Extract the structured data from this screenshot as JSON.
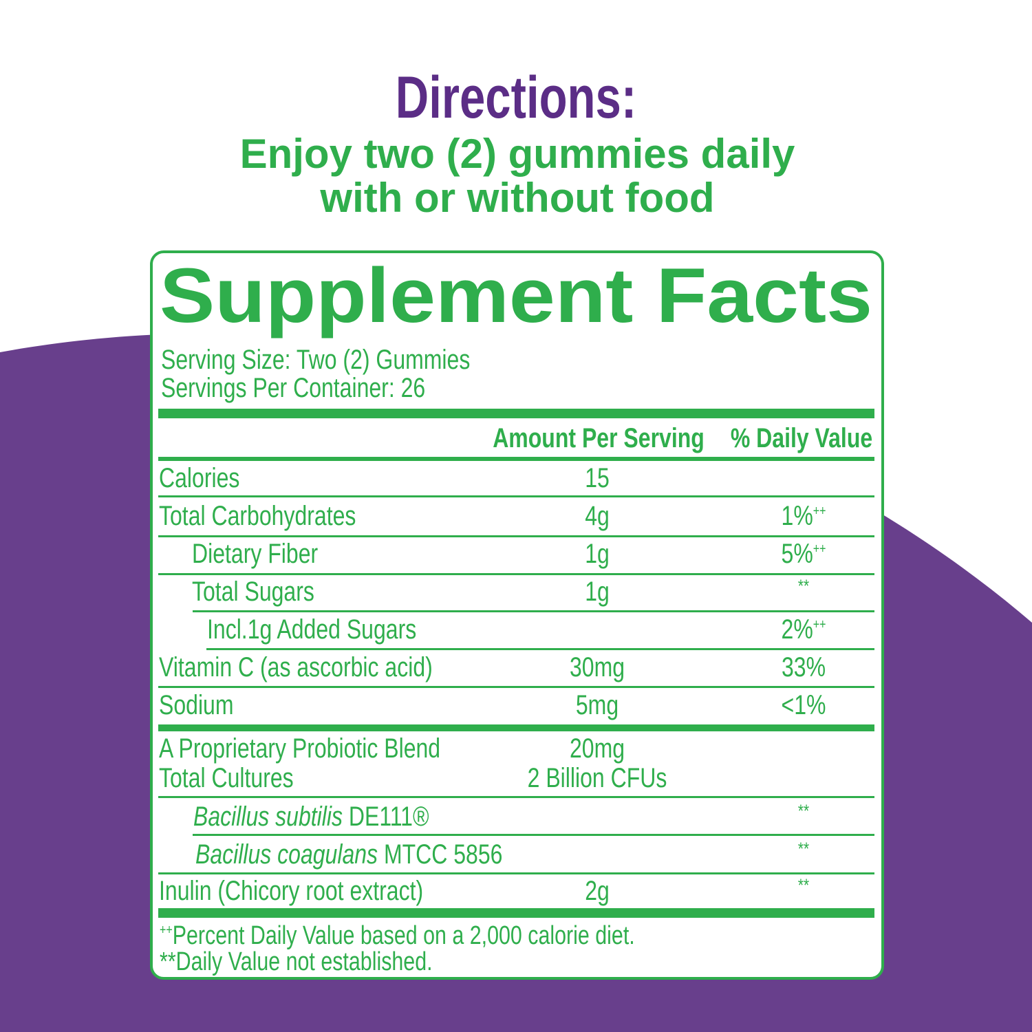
{
  "directions": {
    "title": "Directions:",
    "lines": [
      "Enjoy two (2) gummies daily",
      "with or without food"
    ]
  },
  "facts": {
    "title": "Supplement Facts",
    "serving_size": "Serving Size: Two (2) Gummies",
    "servings_per_container": "Servings Per Container: 26",
    "headers": {
      "amount": "Amount Per Serving",
      "dv": "% Daily Value"
    },
    "rows": [
      {
        "name": "Calories",
        "amount": "15"
      },
      {
        "name": "Total Carbohydrates",
        "amount": "4g",
        "dv": "1%",
        "dv_note": "++"
      },
      {
        "name": "Dietary Fiber",
        "amount": "1g",
        "dv": "5%",
        "dv_note": "++"
      },
      {
        "name": "Total Sugars",
        "amount": "1g",
        "dv_note": "**"
      },
      {
        "name": "Incl.1g Added Sugars",
        "dv": "2%",
        "dv_note": "++"
      },
      {
        "name": "Vitamin C (as ascorbic acid)",
        "amount": "30mg",
        "dv": "33%"
      },
      {
        "name": "Sodium",
        "amount": "5mg",
        "dv": "<1%"
      },
      {
        "name": "A Proprietary Probiotic Blend",
        "amount": "20mg",
        "sub_name": "Total Cultures",
        "sub_amount": "2 Billion CFUs"
      },
      {
        "name_italic": "Bacillus subtilis",
        "name": " DE111®",
        "dv_note": "**"
      },
      {
        "name_italic": "Bacillus coagulans",
        "name": " MTCC 5856",
        "dv_note": "**"
      },
      {
        "name": "Inulin (Chicory root extract)",
        "amount": "2g",
        "dv_note": "**"
      }
    ],
    "footnotes": [
      {
        "mark": "++",
        "text": "Percent Daily Value based on a 2,000 calorie diet."
      },
      {
        "text": "**Daily Value not established."
      }
    ]
  }
}
